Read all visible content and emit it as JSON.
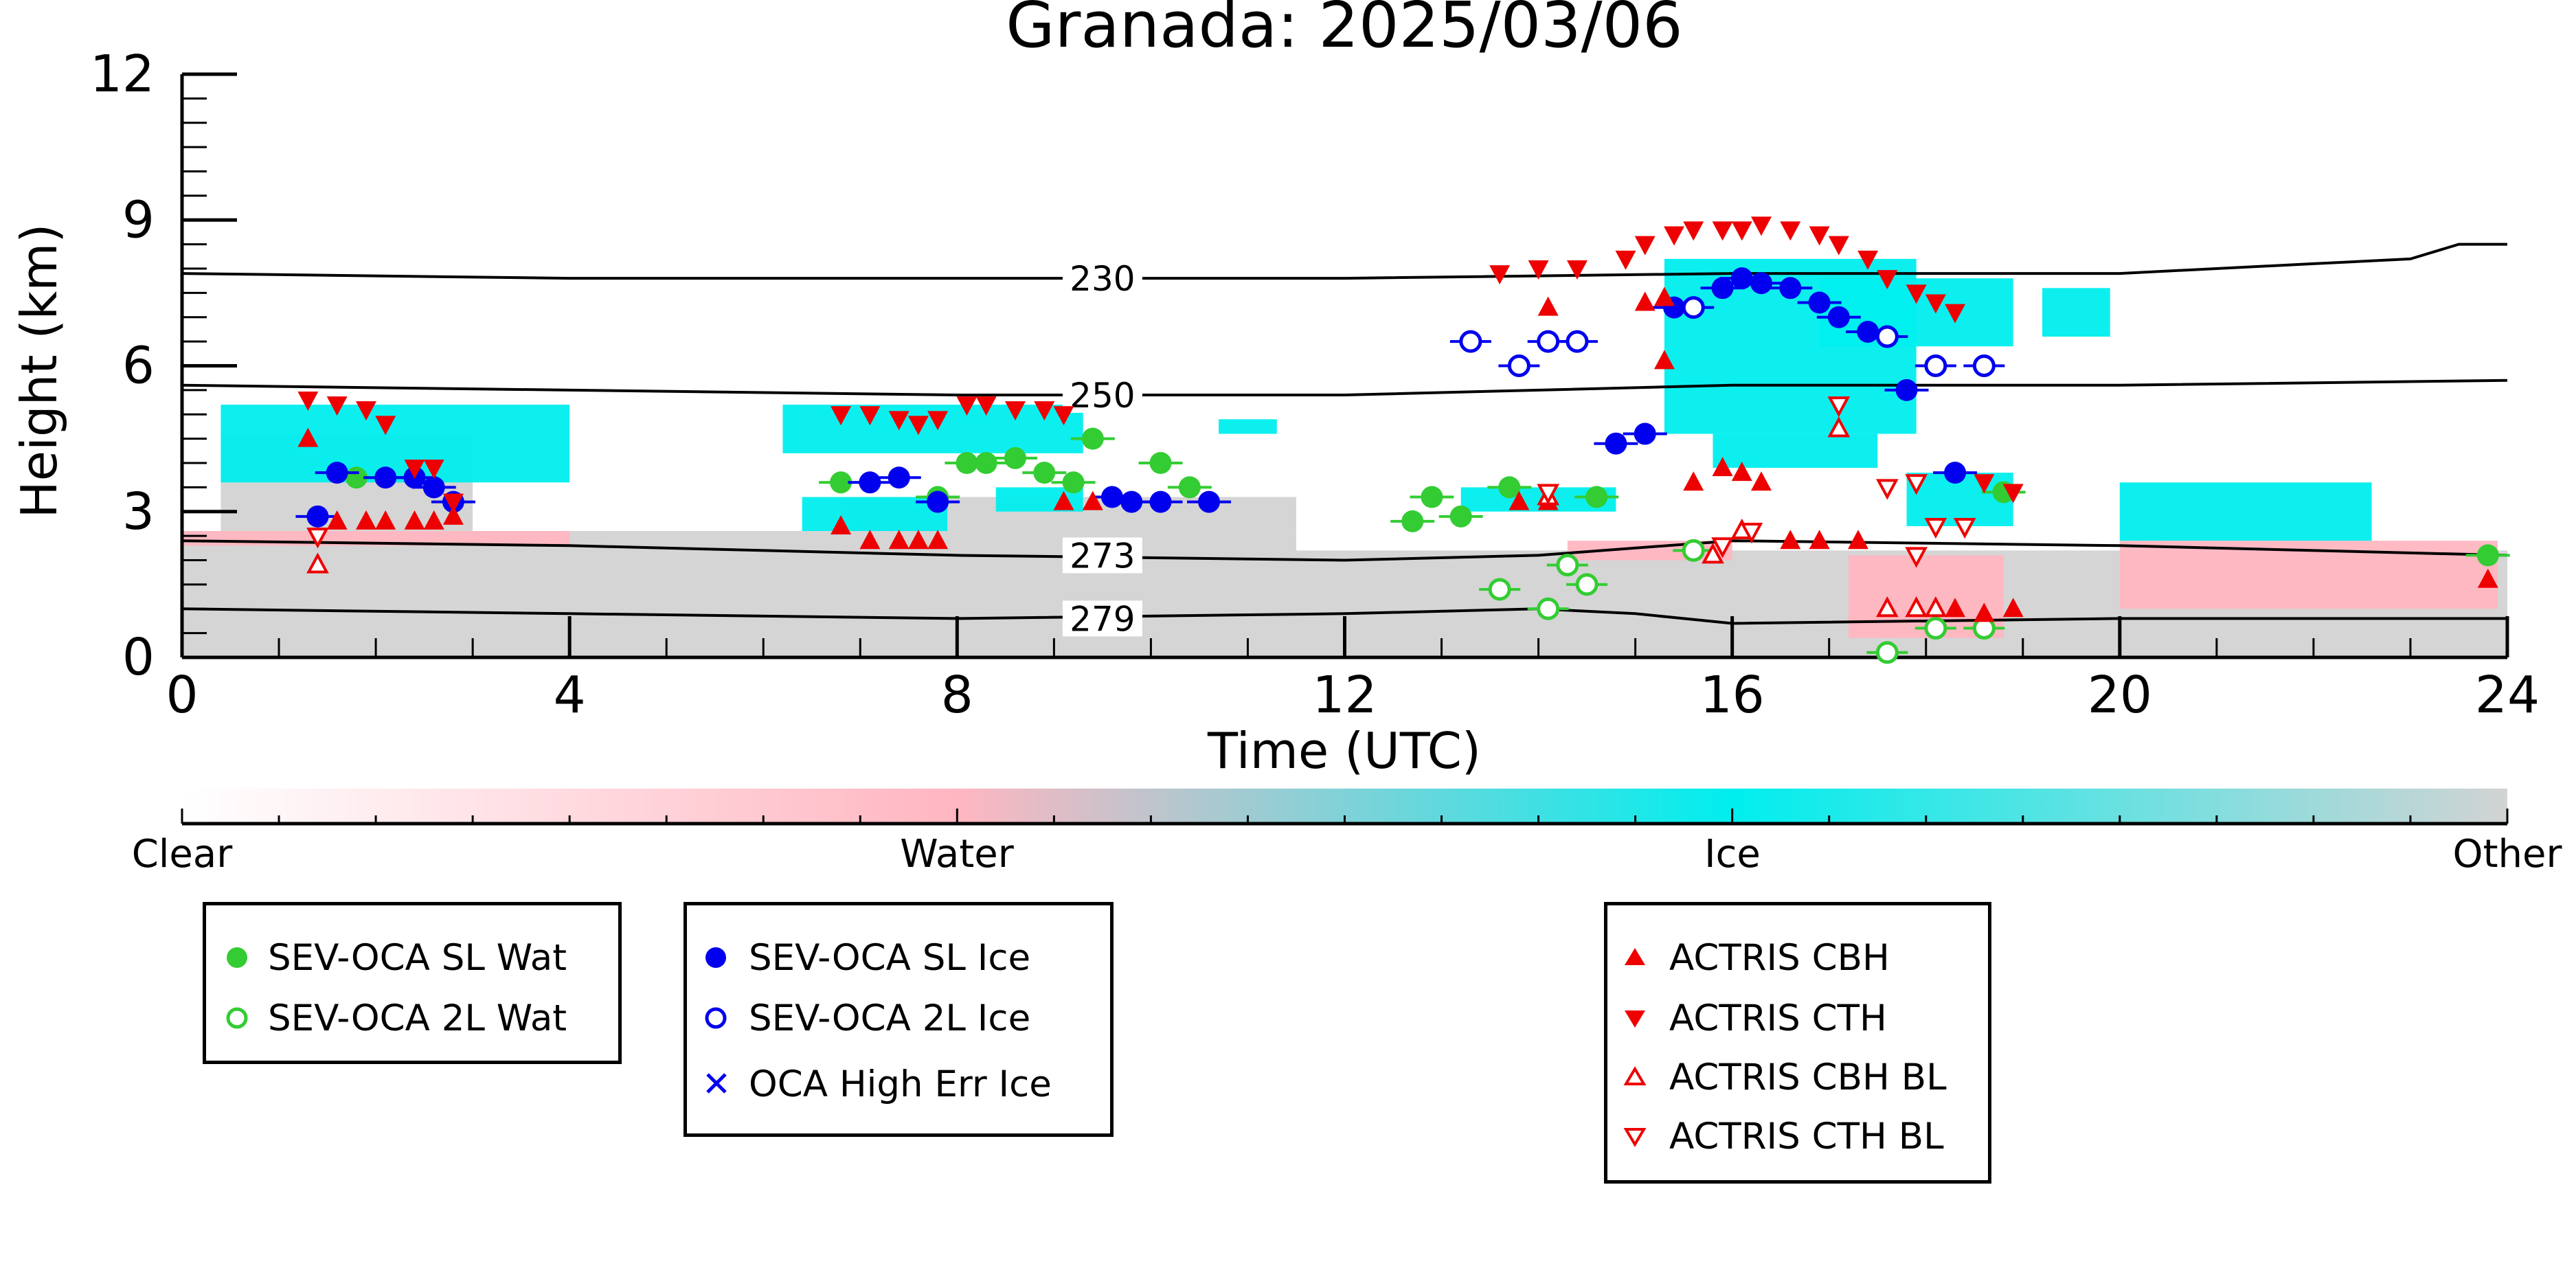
{
  "chart_data": {
    "type": "scatter",
    "title": "Granada: 2025/03/06",
    "xlabel": "Time (UTC)",
    "ylabel": "Height (km)",
    "xlim": [
      0,
      24
    ],
    "ylim": [
      0,
      12
    ],
    "x_ticks": [
      "0",
      "4",
      "8",
      "12",
      "16",
      "20",
      "24"
    ],
    "y_ticks": [
      "0",
      "3",
      "6",
      "9",
      "12"
    ],
    "isotherms": [
      {
        "label": "230",
        "points": [
          [
            0,
            7.9
          ],
          [
            4,
            7.8
          ],
          [
            8,
            7.8
          ],
          [
            12,
            7.8
          ],
          [
            16,
            7.9
          ],
          [
            20,
            7.9
          ],
          [
            22,
            8.1
          ],
          [
            23,
            8.2
          ],
          [
            23.5,
            8.5
          ],
          [
            24,
            8.5
          ]
        ]
      },
      {
        "label": "250",
        "points": [
          [
            0,
            5.6
          ],
          [
            4,
            5.5
          ],
          [
            8,
            5.4
          ],
          [
            12,
            5.4
          ],
          [
            16,
            5.6
          ],
          [
            20,
            5.6
          ],
          [
            24,
            5.7
          ]
        ]
      },
      {
        "label": "273",
        "points": [
          [
            0,
            2.4
          ],
          [
            4,
            2.3
          ],
          [
            8,
            2.1
          ],
          [
            12,
            2.0
          ],
          [
            14,
            2.1
          ],
          [
            16,
            2.4
          ],
          [
            20,
            2.3
          ],
          [
            24,
            2.1
          ]
        ]
      },
      {
        "label": "279",
        "points": [
          [
            0,
            1.0
          ],
          [
            4,
            0.9
          ],
          [
            8,
            0.8
          ],
          [
            12,
            0.9
          ],
          [
            14,
            1.0
          ],
          [
            15,
            0.9
          ],
          [
            16,
            0.7
          ],
          [
            20,
            0.8
          ],
          [
            24,
            0.8
          ]
        ]
      }
    ],
    "colorbar": {
      "labels": [
        "Clear",
        "Water",
        "Ice",
        "Other"
      ],
      "colors": [
        "#ffffff",
        "#ffb6c1",
        "#00eeee",
        "#d3d3d3"
      ]
    },
    "series": [
      {
        "name": "SEV-OCA SL Wat",
        "marker": "filled-circle",
        "color": "#33cc33",
        "points": [
          [
            1.8,
            3.7
          ],
          [
            6.8,
            3.6
          ],
          [
            7.8,
            3.3
          ],
          [
            8.1,
            4.0
          ],
          [
            8.3,
            4.0
          ],
          [
            8.6,
            4.1
          ],
          [
            8.9,
            3.8
          ],
          [
            9.2,
            3.6
          ],
          [
            9.4,
            4.5
          ],
          [
            10.1,
            4.0
          ],
          [
            10.4,
            3.5
          ],
          [
            12.7,
            2.8
          ],
          [
            12.9,
            3.3
          ],
          [
            13.2,
            2.9
          ],
          [
            13.7,
            3.5
          ],
          [
            14.6,
            3.3
          ],
          [
            18.8,
            3.4
          ],
          [
            23.8,
            2.1
          ]
        ]
      },
      {
        "name": "SEV-OCA 2L Wat",
        "marker": "open-circle",
        "color": "#33cc33",
        "points": [
          [
            13.6,
            1.4
          ],
          [
            14.1,
            1.0
          ],
          [
            14.3,
            1.9
          ],
          [
            14.5,
            1.5
          ],
          [
            15.6,
            2.2
          ],
          [
            17.6,
            0.1
          ],
          [
            18.1,
            0.6
          ],
          [
            18.6,
            0.6
          ]
        ]
      },
      {
        "name": "SEV-OCA SL Ice",
        "marker": "filled-circle",
        "color": "#0000ee",
        "points": [
          [
            1.4,
            2.9
          ],
          [
            1.6,
            3.8
          ],
          [
            2.1,
            3.7
          ],
          [
            2.4,
            3.7
          ],
          [
            2.6,
            3.5
          ],
          [
            2.8,
            3.2
          ],
          [
            7.1,
            3.6
          ],
          [
            7.4,
            3.7
          ],
          [
            7.8,
            3.2
          ],
          [
            9.6,
            3.3
          ],
          [
            9.8,
            3.2
          ],
          [
            10.1,
            3.2
          ],
          [
            10.6,
            3.2
          ],
          [
            14.8,
            4.4
          ],
          [
            15.1,
            4.6
          ],
          [
            15.4,
            7.2
          ],
          [
            15.9,
            7.6
          ],
          [
            16.1,
            7.8
          ],
          [
            16.3,
            7.7
          ],
          [
            16.6,
            7.6
          ],
          [
            16.9,
            7.3
          ],
          [
            17.1,
            7.0
          ],
          [
            17.4,
            6.7
          ],
          [
            17.8,
            5.5
          ],
          [
            18.3,
            3.8
          ]
        ]
      },
      {
        "name": "SEV-OCA 2L Ice",
        "marker": "open-circle",
        "color": "#0000ee",
        "points": [
          [
            13.3,
            6.5
          ],
          [
            13.8,
            6.0
          ],
          [
            14.1,
            6.5
          ],
          [
            14.4,
            6.5
          ],
          [
            15.6,
            7.2
          ],
          [
            17.6,
            6.6
          ],
          [
            18.1,
            6.0
          ],
          [
            18.6,
            6.0
          ]
        ]
      },
      {
        "name": "OCA High Err Ice",
        "marker": "x",
        "color": "#0000ee",
        "points": []
      },
      {
        "name": "ACTRIS CBH",
        "marker": "triangle-up",
        "color": "#ee0000",
        "points": [
          [
            1.3,
            4.5
          ],
          [
            1.6,
            2.8
          ],
          [
            1.9,
            2.8
          ],
          [
            2.1,
            2.8
          ],
          [
            2.4,
            2.8
          ],
          [
            2.6,
            2.8
          ],
          [
            2.8,
            2.9
          ],
          [
            6.8,
            2.7
          ],
          [
            7.1,
            2.4
          ],
          [
            7.4,
            2.4
          ],
          [
            7.6,
            2.4
          ],
          [
            7.8,
            2.4
          ],
          [
            9.1,
            3.2
          ],
          [
            9.4,
            3.2
          ],
          [
            13.8,
            3.2
          ],
          [
            14.1,
            3.2
          ],
          [
            14.1,
            7.2
          ],
          [
            15.1,
            7.3
          ],
          [
            15.3,
            7.4
          ],
          [
            15.3,
            6.1
          ],
          [
            15.6,
            3.6
          ],
          [
            15.9,
            3.9
          ],
          [
            16.1,
            3.8
          ],
          [
            16.3,
            3.6
          ],
          [
            16.6,
            2.4
          ],
          [
            16.9,
            2.4
          ],
          [
            17.3,
            2.4
          ],
          [
            18.3,
            1.0
          ],
          [
            18.6,
            0.9
          ],
          [
            18.9,
            1.0
          ],
          [
            23.8,
            1.6
          ]
        ]
      },
      {
        "name": "ACTRIS CTH",
        "marker": "triangle-down",
        "color": "#ee0000",
        "points": [
          [
            1.3,
            5.3
          ],
          [
            1.6,
            5.2
          ],
          [
            1.9,
            5.1
          ],
          [
            2.1,
            4.8
          ],
          [
            2.4,
            3.9
          ],
          [
            2.6,
            3.9
          ],
          [
            2.8,
            3.2
          ],
          [
            6.8,
            5.0
          ],
          [
            7.1,
            5.0
          ],
          [
            7.4,
            4.9
          ],
          [
            7.6,
            4.8
          ],
          [
            7.8,
            4.9
          ],
          [
            8.1,
            5.2
          ],
          [
            8.3,
            5.2
          ],
          [
            8.6,
            5.1
          ],
          [
            8.9,
            5.1
          ],
          [
            9.1,
            5.0
          ],
          [
            13.6,
            7.9
          ],
          [
            14.0,
            8.0
          ],
          [
            14.4,
            8.0
          ],
          [
            14.9,
            8.2
          ],
          [
            15.1,
            8.5
          ],
          [
            15.4,
            8.7
          ],
          [
            15.6,
            8.8
          ],
          [
            15.9,
            8.8
          ],
          [
            16.1,
            8.8
          ],
          [
            16.3,
            8.9
          ],
          [
            16.6,
            8.8
          ],
          [
            16.9,
            8.7
          ],
          [
            17.1,
            8.5
          ],
          [
            17.4,
            8.2
          ],
          [
            17.6,
            7.8
          ],
          [
            17.9,
            7.5
          ],
          [
            18.1,
            7.3
          ],
          [
            18.3,
            7.1
          ],
          [
            18.6,
            3.6
          ],
          [
            18.9,
            3.4
          ]
        ]
      },
      {
        "name": "ACTRIS CBH BL",
        "marker": "open-triangle-up",
        "color": "#ee0000",
        "points": [
          [
            1.4,
            1.9
          ],
          [
            14.1,
            3.3
          ],
          [
            15.8,
            2.1
          ],
          [
            16.1,
            2.6
          ],
          [
            17.1,
            4.7
          ],
          [
            17.6,
            1.0
          ],
          [
            17.9,
            1.0
          ],
          [
            18.1,
            1.0
          ]
        ]
      },
      {
        "name": "ACTRIS CTH BL",
        "marker": "open-triangle-down",
        "color": "#ee0000",
        "points": [
          [
            1.4,
            2.5
          ],
          [
            14.1,
            3.4
          ],
          [
            15.9,
            2.3
          ],
          [
            16.2,
            2.6
          ],
          [
            17.1,
            5.2
          ],
          [
            17.6,
            3.5
          ],
          [
            17.9,
            3.6
          ],
          [
            18.1,
            2.7
          ],
          [
            18.4,
            2.7
          ],
          [
            17.9,
            2.1
          ]
        ]
      }
    ]
  }
}
